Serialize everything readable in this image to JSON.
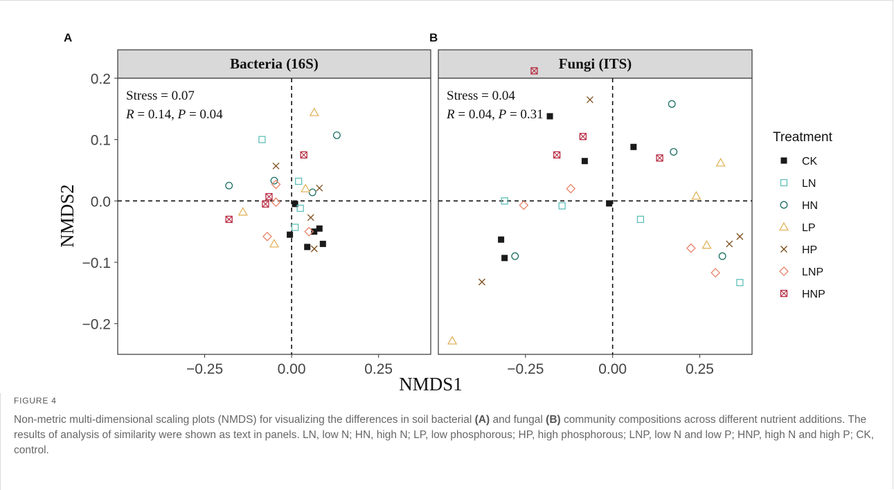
{
  "chart_data": {
    "type": "scatter",
    "ylabel": "NMDS2",
    "xlabel": "NMDS1",
    "ylim": [
      -0.25,
      0.2
    ],
    "y_ticks": [
      "0.2",
      "0.1",
      "0.0",
      "−0.1",
      "−0.2"
    ],
    "y_tick_values": [
      0.2,
      0.1,
      0.0,
      -0.1,
      -0.2
    ],
    "legend": {
      "title": "Treatment",
      "placement": "right",
      "entries": [
        {
          "key": "CK",
          "label": "CK",
          "color": "#1a1a1a",
          "shape": "filled-square"
        },
        {
          "key": "LN",
          "label": "LN",
          "color": "#5fbfb8",
          "shape": "open-square"
        },
        {
          "key": "HN",
          "label": "HN",
          "color": "#1a6e63",
          "shape": "open-circle"
        },
        {
          "key": "LP",
          "label": "LP",
          "color": "#e0b45c",
          "shape": "open-triangle"
        },
        {
          "key": "HP",
          "label": "HP",
          "color": "#7a4a1a",
          "shape": "x-cross"
        },
        {
          "key": "LNP",
          "label": "LNP",
          "color": "#e8836a",
          "shape": "open-diamond"
        },
        {
          "key": "HNP",
          "label": "HNP",
          "color": "#b5283f",
          "shape": "crossed-square"
        }
      ]
    },
    "panels": [
      {
        "letter": "A",
        "title": "Bacteria (16S)",
        "stats_line1": "Stress = 0.07",
        "stats_R": "R",
        "stats_R_val": " = 0.14, ",
        "stats_P": "P",
        "stats_P_val": " = 0.04",
        "xlim": [
          -0.5,
          0.4
        ],
        "x_ticks": [
          "−0.25",
          "0.00",
          "0.25"
        ],
        "x_tick_values": [
          -0.25,
          0.0,
          0.25
        ],
        "points": [
          {
            "t": "CK",
            "x": 0.01,
            "y": -0.005
          },
          {
            "t": "CK",
            "x": -0.005,
            "y": -0.055
          },
          {
            "t": "CK",
            "x": 0.045,
            "y": -0.075
          },
          {
            "t": "CK",
            "x": 0.065,
            "y": -0.05
          },
          {
            "t": "CK",
            "x": 0.08,
            "y": -0.045
          },
          {
            "t": "CK",
            "x": 0.09,
            "y": -0.07
          },
          {
            "t": "LN",
            "x": -0.085,
            "y": 0.1
          },
          {
            "t": "LN",
            "x": 0.02,
            "y": 0.032
          },
          {
            "t": "LN",
            "x": 0.025,
            "y": -0.012
          },
          {
            "t": "LN",
            "x": 0.01,
            "y": -0.043
          },
          {
            "t": "HN",
            "x": 0.13,
            "y": 0.107
          },
          {
            "t": "HN",
            "x": -0.18,
            "y": 0.025
          },
          {
            "t": "HN",
            "x": -0.05,
            "y": 0.033
          },
          {
            "t": "HN",
            "x": 0.06,
            "y": 0.014
          },
          {
            "t": "LP",
            "x": 0.065,
            "y": 0.144
          },
          {
            "t": "LP",
            "x": 0.04,
            "y": 0.02
          },
          {
            "t": "LP",
            "x": -0.14,
            "y": -0.018
          },
          {
            "t": "LP",
            "x": -0.05,
            "y": -0.07
          },
          {
            "t": "HP",
            "x": -0.045,
            "y": 0.057
          },
          {
            "t": "HP",
            "x": 0.08,
            "y": 0.021
          },
          {
            "t": "HP",
            "x": 0.055,
            "y": -0.027
          },
          {
            "t": "HP",
            "x": 0.065,
            "y": -0.078
          },
          {
            "t": "LNP",
            "x": -0.045,
            "y": 0.027
          },
          {
            "t": "LNP",
            "x": -0.045,
            "y": -0.002
          },
          {
            "t": "LNP",
            "x": -0.07,
            "y": -0.058
          },
          {
            "t": "LNP",
            "x": 0.05,
            "y": -0.05
          },
          {
            "t": "HNP",
            "x": 0.035,
            "y": 0.075
          },
          {
            "t": "HNP",
            "x": -0.065,
            "y": 0.007
          },
          {
            "t": "HNP",
            "x": -0.075,
            "y": -0.005
          },
          {
            "t": "HNP",
            "x": -0.18,
            "y": -0.03
          }
        ]
      },
      {
        "letter": "B",
        "title": "Fungi (ITS)",
        "stats_line1": "Stress = 0.04",
        "stats_R": "R",
        "stats_R_val": " = 0.04, ",
        "stats_P": "P",
        "stats_P_val": " = 0.31",
        "xlim": [
          -0.5,
          0.4
        ],
        "x_ticks": [
          "−0.25",
          "0.00",
          "0.25"
        ],
        "x_tick_values": [
          -0.25,
          0.0,
          0.25
        ],
        "points": [
          {
            "t": "CK",
            "x": -0.18,
            "y": 0.138
          },
          {
            "t": "CK",
            "x": 0.06,
            "y": 0.088
          },
          {
            "t": "CK",
            "x": -0.08,
            "y": 0.065
          },
          {
            "t": "CK",
            "x": -0.01,
            "y": -0.004
          },
          {
            "t": "CK",
            "x": -0.32,
            "y": -0.063
          },
          {
            "t": "CK",
            "x": -0.31,
            "y": -0.093
          },
          {
            "t": "LN",
            "x": -0.31,
            "y": 0.0
          },
          {
            "t": "LN",
            "x": -0.145,
            "y": -0.008
          },
          {
            "t": "LN",
            "x": 0.08,
            "y": -0.03
          },
          {
            "t": "LN",
            "x": 0.365,
            "y": -0.133
          },
          {
            "t": "HN",
            "x": 0.17,
            "y": 0.158
          },
          {
            "t": "HN",
            "x": 0.175,
            "y": 0.08
          },
          {
            "t": "HN",
            "x": -0.28,
            "y": -0.09
          },
          {
            "t": "HN",
            "x": 0.315,
            "y": -0.09
          },
          {
            "t": "LP",
            "x": 0.31,
            "y": 0.062
          },
          {
            "t": "LP",
            "x": 0.24,
            "y": 0.008
          },
          {
            "t": "LP",
            "x": 0.27,
            "y": -0.072
          },
          {
            "t": "LP",
            "x": -0.46,
            "y": -0.228
          },
          {
            "t": "HP",
            "x": -0.065,
            "y": 0.165
          },
          {
            "t": "HP",
            "x": 0.335,
            "y": -0.07
          },
          {
            "t": "HP",
            "x": 0.365,
            "y": -0.058
          },
          {
            "t": "HP",
            "x": -0.375,
            "y": -0.132
          },
          {
            "t": "LNP",
            "x": -0.12,
            "y": 0.02
          },
          {
            "t": "LNP",
            "x": -0.255,
            "y": -0.007
          },
          {
            "t": "LNP",
            "x": 0.225,
            "y": -0.077
          },
          {
            "t": "LNP",
            "x": 0.295,
            "y": -0.117
          },
          {
            "t": "HNP",
            "x": -0.225,
            "y": 0.212
          },
          {
            "t": "HNP",
            "x": -0.085,
            "y": 0.105
          },
          {
            "t": "HNP",
            "x": -0.16,
            "y": 0.075
          },
          {
            "t": "HNP",
            "x": 0.135,
            "y": 0.07
          }
        ]
      }
    ]
  },
  "caption": {
    "figure_label": "FIGURE 4",
    "text_1": "Non-metric multi-dimensional scaling plots (NMDS) for visualizing the differences in soil bacterial ",
    "bold_1": "(A)",
    "text_2": " and fungal ",
    "bold_2": "(B)",
    "text_3": " community compositions across different nutrient additions. The results of analysis of similarity were shown as text in panels. LN, low N; HN, high N; LP, low phosphorous; HP, high phosphorous; LNP, low N and low P; HNP, high N and high P; CK, control."
  }
}
